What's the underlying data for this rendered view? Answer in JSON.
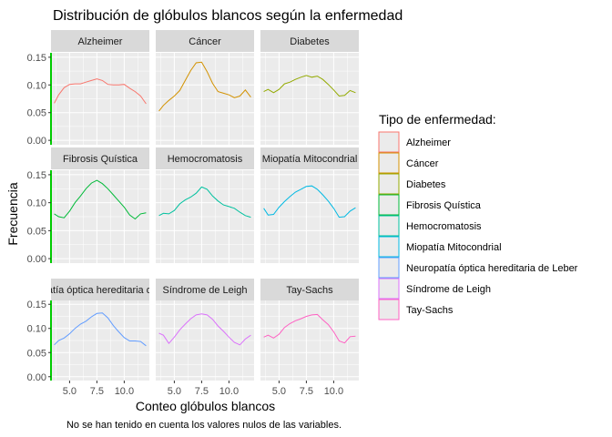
{
  "chart_data": {
    "type": "line",
    "title": "Distribución de glóbulos blancos según la enfermedad",
    "xlabel": "Conteo glóbulos blancos",
    "ylabel": "Frecuencia",
    "caption": "No se han tenido en cuenta los valores nulos de las variables.",
    "xlim": [
      3.3,
      12.3
    ],
    "ylim": [
      -0.008,
      0.158
    ],
    "x_ticks": [
      5.0,
      7.5,
      10.0
    ],
    "x_tick_labels": [
      "5.0",
      "7.5",
      "10.0"
    ],
    "y_ticks": [
      0.0,
      0.05,
      0.1,
      0.15
    ],
    "y_tick_labels": [
      "0.00",
      "0.05",
      "0.10",
      "0.15"
    ],
    "grid": true,
    "legend": {
      "title": "Tipo de enfermedad:",
      "position": "right"
    },
    "series": [
      {
        "name": "Alzheimer",
        "color": "#F8766D",
        "x": [
          3.6,
          4.0,
          4.5,
          5.0,
          5.5,
          6.0,
          6.5,
          7.0,
          7.5,
          8.0,
          8.5,
          9.0,
          9.5,
          10.0,
          10.5,
          11.0,
          11.5,
          12.0
        ],
        "y": [
          0.067,
          0.082,
          0.095,
          0.101,
          0.102,
          0.102,
          0.105,
          0.108,
          0.111,
          0.108,
          0.101,
          0.1,
          0.1,
          0.101,
          0.094,
          0.088,
          0.08,
          0.066
        ]
      },
      {
        "name": "Cáncer",
        "color": "#D39200",
        "x": [
          3.6,
          4.0,
          4.5,
          5.0,
          5.5,
          6.0,
          6.5,
          7.0,
          7.5,
          8.0,
          8.5,
          9.0,
          9.5,
          10.0,
          10.5,
          11.0,
          11.5,
          12.0
        ],
        "y": [
          0.053,
          0.063,
          0.072,
          0.08,
          0.09,
          0.108,
          0.126,
          0.14,
          0.141,
          0.124,
          0.103,
          0.088,
          0.085,
          0.082,
          0.077,
          0.08,
          0.091,
          0.078
        ]
      },
      {
        "name": "Diabetes",
        "color": "#93AA00",
        "x": [
          3.6,
          4.0,
          4.5,
          5.0,
          5.5,
          6.0,
          6.5,
          7.0,
          7.5,
          8.0,
          8.5,
          9.0,
          9.5,
          10.0,
          10.5,
          11.0,
          11.5,
          12.0
        ],
        "y": [
          0.088,
          0.092,
          0.086,
          0.092,
          0.102,
          0.105,
          0.11,
          0.114,
          0.117,
          0.114,
          0.116,
          0.11,
          0.101,
          0.091,
          0.08,
          0.081,
          0.09,
          0.086
        ]
      },
      {
        "name": "Fibrosis Quística",
        "color": "#00BA38",
        "x": [
          3.6,
          4.0,
          4.5,
          5.0,
          5.5,
          6.0,
          6.5,
          7.0,
          7.5,
          8.0,
          8.5,
          9.0,
          9.5,
          10.0,
          10.5,
          11.0,
          11.5,
          12.0
        ],
        "y": [
          0.08,
          0.075,
          0.073,
          0.085,
          0.1,
          0.112,
          0.125,
          0.135,
          0.14,
          0.134,
          0.125,
          0.114,
          0.103,
          0.092,
          0.078,
          0.071,
          0.08,
          0.082
        ]
      },
      {
        "name": "Hemocromatosis",
        "color": "#00C19F",
        "x": [
          3.6,
          4.0,
          4.5,
          5.0,
          5.5,
          6.0,
          6.5,
          7.0,
          7.5,
          8.0,
          8.5,
          9.0,
          9.5,
          10.0,
          10.5,
          11.0,
          11.5,
          12.0
        ],
        "y": [
          0.077,
          0.081,
          0.08,
          0.086,
          0.098,
          0.105,
          0.11,
          0.117,
          0.128,
          0.124,
          0.112,
          0.103,
          0.096,
          0.093,
          0.09,
          0.083,
          0.077,
          0.074
        ]
      },
      {
        "name": "Miopatía Mitocondrial",
        "color": "#00B9E3",
        "x": [
          3.6,
          4.0,
          4.5,
          5.0,
          5.5,
          6.0,
          6.5,
          7.0,
          7.5,
          8.0,
          8.5,
          9.0,
          9.5,
          10.0,
          10.5,
          11.0,
          11.5,
          12.0
        ],
        "y": [
          0.09,
          0.078,
          0.079,
          0.092,
          0.102,
          0.111,
          0.119,
          0.124,
          0.129,
          0.13,
          0.124,
          0.114,
          0.103,
          0.09,
          0.074,
          0.075,
          0.085,
          0.091
        ]
      },
      {
        "name": "Neuropatía óptica hereditaria de Leber",
        "color": "#619CFF",
        "x": [
          3.6,
          4.0,
          4.5,
          5.0,
          5.5,
          6.0,
          6.5,
          7.0,
          7.5,
          8.0,
          8.5,
          9.0,
          9.5,
          10.0,
          10.5,
          11.0,
          11.5,
          12.0
        ],
        "y": [
          0.066,
          0.075,
          0.08,
          0.089,
          0.1,
          0.109,
          0.115,
          0.124,
          0.131,
          0.132,
          0.122,
          0.106,
          0.093,
          0.081,
          0.074,
          0.074,
          0.073,
          0.064
        ]
      },
      {
        "name": "Síndrome de Leigh",
        "color": "#DB72FB",
        "x": [
          3.6,
          4.0,
          4.5,
          5.0,
          5.5,
          6.0,
          6.5,
          7.0,
          7.5,
          8.0,
          8.5,
          9.0,
          9.5,
          10.0,
          10.5,
          11.0,
          11.5,
          12.0
        ],
        "y": [
          0.09,
          0.086,
          0.069,
          0.082,
          0.097,
          0.109,
          0.12,
          0.128,
          0.13,
          0.128,
          0.119,
          0.105,
          0.094,
          0.082,
          0.071,
          0.066,
          0.078,
          0.086
        ]
      },
      {
        "name": "Tay-Sachs",
        "color": "#FF61C3",
        "x": [
          3.6,
          4.0,
          4.5,
          5.0,
          5.5,
          6.0,
          6.5,
          7.0,
          7.5,
          8.0,
          8.5,
          9.0,
          9.5,
          10.0,
          10.5,
          11.0,
          11.5,
          12.0
        ],
        "y": [
          0.082,
          0.086,
          0.08,
          0.088,
          0.102,
          0.11,
          0.116,
          0.12,
          0.125,
          0.128,
          0.129,
          0.118,
          0.108,
          0.093,
          0.074,
          0.07,
          0.083,
          0.084
        ]
      }
    ],
    "facets": [
      {
        "label": "Alzheimer",
        "series": 0
      },
      {
        "label": "Cáncer",
        "series": 1
      },
      {
        "label": "Diabetes",
        "series": 2
      },
      {
        "label": "Fibrosis Quística",
        "series": 3
      },
      {
        "label": "Hemocromatosis",
        "series": 4
      },
      {
        "label": "Miopatía Mitocondrial",
        "series": 5
      },
      {
        "label": "Neuropatía óptica hereditaria de Leber",
        "series": 6
      },
      {
        "label": "Síndrome de Leigh",
        "series": 7
      },
      {
        "label": "Tay-Sachs",
        "series": 8
      }
    ],
    "colors": {
      "panel_background": "#EBEBEB",
      "grid_line": "#FFFFFF",
      "strip_background": "#D9D9D9",
      "y_axis_line": "#00CC00",
      "axis_text": "#4D4D4D",
      "legend_key_fill": "#EBEBEB"
    }
  }
}
